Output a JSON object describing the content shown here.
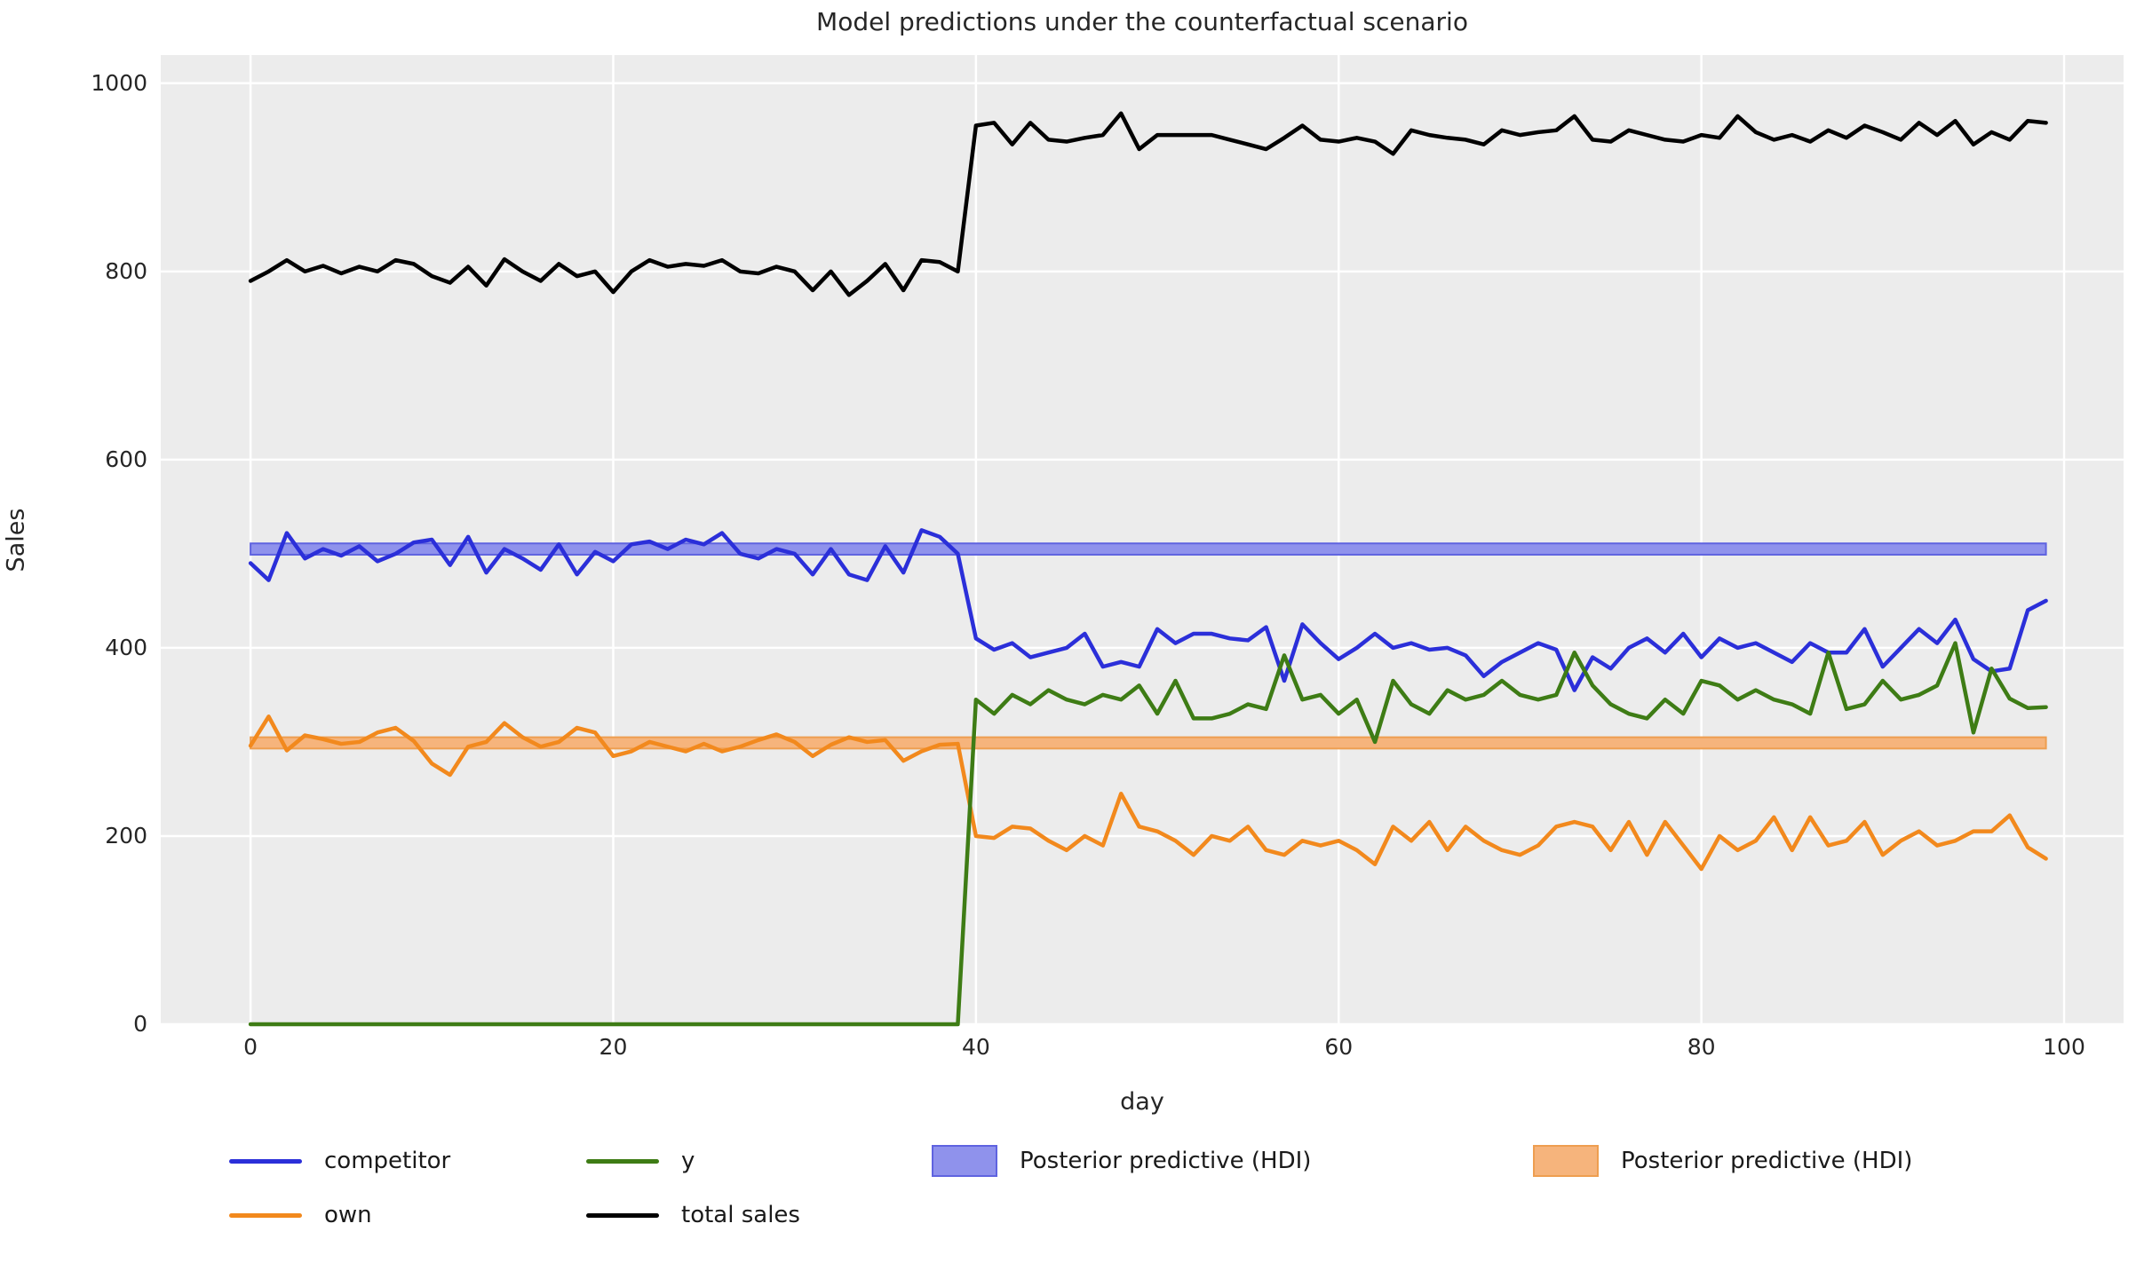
{
  "title": "Model predictions under the counterfactual scenario",
  "colors": {
    "figure_background": "#ffffff",
    "plot_background": "#ececec",
    "gridline": "#ffffff",
    "text": "#262626",
    "competitor_line": "#2b2fd9",
    "own_line": "#f2891d",
    "y_line": "#3e7c15",
    "total_sales_line": "#000000",
    "hdi_blue_fill": "#8f92ec",
    "hdi_blue_edge": "#5f63e0",
    "hdi_orange_fill": "#f6b47c",
    "hdi_orange_edge": "#ee9e50"
  },
  "chart_data": {
    "type": "line",
    "title": "Model predictions under the counterfactual scenario",
    "xlabel": "day",
    "ylabel": "Sales",
    "x_ticks": [
      0,
      20,
      40,
      60,
      80,
      100
    ],
    "y_ticks": [
      0,
      200,
      400,
      600,
      800,
      1000
    ],
    "xlim": [
      -4.95,
      103.28
    ],
    "ylim": [
      0,
      1030
    ],
    "grid": true,
    "legend_position": "below",
    "x": [
      0,
      1,
      2,
      3,
      4,
      5,
      6,
      7,
      8,
      9,
      10,
      11,
      12,
      13,
      14,
      15,
      16,
      17,
      18,
      19,
      20,
      21,
      22,
      23,
      24,
      25,
      26,
      27,
      28,
      29,
      30,
      31,
      32,
      33,
      34,
      35,
      36,
      37,
      38,
      39,
      40,
      41,
      42,
      43,
      44,
      45,
      46,
      47,
      48,
      49,
      50,
      51,
      52,
      53,
      54,
      55,
      56,
      57,
      58,
      59,
      60,
      61,
      62,
      63,
      64,
      65,
      66,
      67,
      68,
      69,
      70,
      71,
      72,
      73,
      74,
      75,
      76,
      77,
      78,
      79,
      80,
      81,
      82,
      83,
      84,
      85,
      86,
      87,
      88,
      89,
      90,
      91,
      92,
      93,
      94,
      95,
      96,
      97,
      98,
      99
    ],
    "series": [
      {
        "name": "competitor",
        "color": "#2b2fd9",
        "values": [
          490,
          472,
          522,
          495,
          505,
          498,
          508,
          492,
          500,
          512,
          515,
          488,
          518,
          480,
          505,
          495,
          483,
          510,
          478,
          502,
          492,
          510,
          513,
          505,
          515,
          510,
          522,
          500,
          495,
          505,
          500,
          478,
          505,
          478,
          472,
          508,
          480,
          525,
          518,
          500,
          410,
          398,
          405,
          390,
          395,
          400,
          415,
          380,
          385,
          380,
          420,
          405,
          415,
          415,
          410,
          408,
          422,
          365,
          425,
          405,
          388,
          400,
          415,
          400,
          405,
          398,
          400,
          392,
          370,
          385,
          395,
          405,
          398,
          355,
          390,
          378,
          400,
          410,
          395,
          415,
          390,
          410,
          400,
          405,
          395,
          385,
          405,
          395,
          395,
          420,
          380,
          400,
          420,
          405,
          430,
          388,
          375,
          378,
          440,
          450
        ]
      },
      {
        "name": "own",
        "color": "#f2891d",
        "values": [
          296,
          327,
          291,
          307,
          303,
          298,
          300,
          310,
          315,
          301,
          277,
          265,
          295,
          300,
          320,
          305,
          295,
          300,
          315,
          310,
          285,
          290,
          300,
          295,
          290,
          298,
          290,
          295,
          302,
          308,
          300,
          285,
          297,
          305,
          300,
          302,
          280,
          290,
          297,
          298,
          200,
          198,
          210,
          208,
          195,
          185,
          200,
          190,
          245,
          210,
          205,
          195,
          180,
          200,
          195,
          210,
          185,
          180,
          195,
          190,
          195,
          185,
          170,
          210,
          195,
          215,
          185,
          210,
          195,
          185,
          180,
          190,
          210,
          215,
          210,
          185,
          215,
          180,
          215,
          190,
          165,
          200,
          185,
          195,
          220,
          185,
          220,
          190,
          195,
          215,
          180,
          195,
          205,
          190,
          195,
          205,
          205,
          222,
          188,
          176
        ]
      },
      {
        "name": "y",
        "color": "#3e7c15",
        "values": [
          0,
          0,
          0,
          0,
          0,
          0,
          0,
          0,
          0,
          0,
          0,
          0,
          0,
          0,
          0,
          0,
          0,
          0,
          0,
          0,
          0,
          0,
          0,
          0,
          0,
          0,
          0,
          0,
          0,
          0,
          0,
          0,
          0,
          0,
          0,
          0,
          0,
          0,
          0,
          0,
          345,
          330,
          350,
          340,
          355,
          345,
          340,
          350,
          345,
          360,
          330,
          365,
          325,
          325,
          330,
          340,
          335,
          392,
          345,
          350,
          330,
          345,
          300,
          365,
          340,
          330,
          355,
          345,
          350,
          365,
          350,
          345,
          350,
          395,
          360,
          340,
          330,
          325,
          345,
          330,
          365,
          360,
          345,
          355,
          345,
          340,
          330,
          395,
          335,
          340,
          365,
          345,
          350,
          360,
          405,
          310,
          378,
          346,
          336,
          337
        ]
      },
      {
        "name": "total sales",
        "color": "#000000",
        "values": [
          790,
          800,
          812,
          800,
          806,
          798,
          805,
          800,
          812,
          808,
          795,
          788,
          805,
          785,
          813,
          800,
          790,
          808,
          795,
          800,
          778,
          800,
          812,
          805,
          808,
          806,
          812,
          800,
          798,
          805,
          800,
          780,
          800,
          775,
          790,
          808,
          780,
          812,
          810,
          800,
          955,
          958,
          935,
          958,
          940,
          938,
          942,
          945,
          968,
          930,
          945,
          945,
          945,
          945,
          940,
          935,
          930,
          942,
          955,
          940,
          938,
          942,
          938,
          925,
          950,
          945,
          942,
          940,
          935,
          950,
          945,
          948,
          950,
          965,
          940,
          938,
          950,
          945,
          940,
          938,
          945,
          942,
          965,
          948,
          940,
          945,
          938,
          950,
          942,
          955,
          948,
          940,
          958,
          945,
          960,
          935,
          948,
          940,
          960,
          958
        ]
      }
    ],
    "bands": [
      {
        "name": "Posterior predictive (HDI)",
        "series": "competitor",
        "x_start": 0,
        "x_end": 99,
        "lo": 499,
        "hi": 511,
        "fill": "#8f92ec",
        "edge": "#5f63e0"
      },
      {
        "name": "Posterior predictive (HDI)",
        "series": "own",
        "x_start": 0,
        "x_end": 99,
        "lo": 293,
        "hi": 305,
        "fill": "#f6b47c",
        "edge": "#ee9e50"
      }
    ]
  },
  "legend": {
    "items": [
      {
        "label": "competitor",
        "swatch": "line",
        "color": "#2b2fd9"
      },
      {
        "label": "y",
        "swatch": "line",
        "color": "#3e7c15"
      },
      {
        "label": "Posterior predictive (HDI)",
        "swatch": "patch",
        "color": "#8f92ec",
        "edge": "#5f63e0"
      },
      {
        "label": "Posterior predictive (HDI)",
        "swatch": "patch",
        "color": "#f6b47c",
        "edge": "#ee9e50"
      },
      {
        "label": "own",
        "swatch": "line",
        "color": "#f2891d"
      },
      {
        "label": "total sales",
        "swatch": "line",
        "color": "#000000"
      }
    ]
  }
}
